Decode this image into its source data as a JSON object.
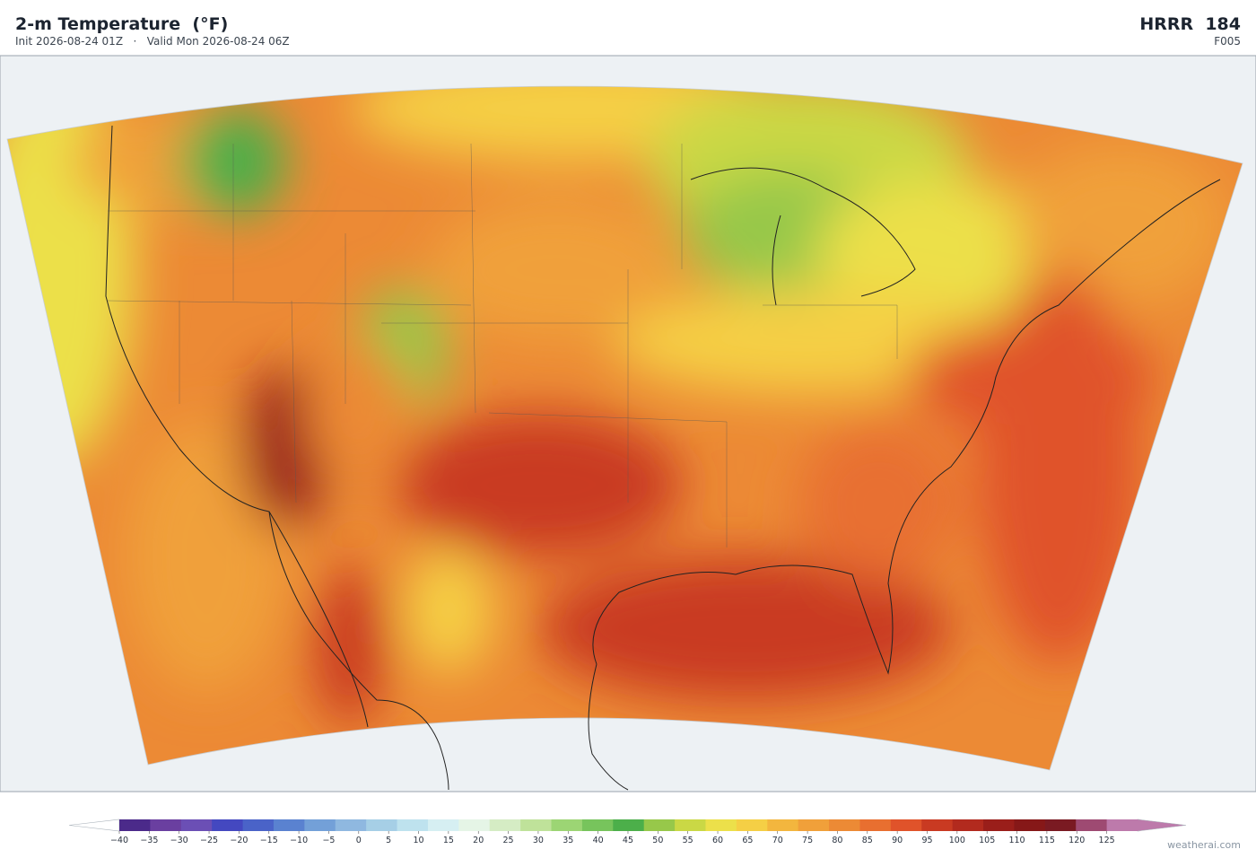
{
  "header": {
    "title": "2-m Temperature  (°F)",
    "subtitle": "Init 2026-08-24 01Z   ·   Valid Mon 2026-08-24 06Z",
    "model": "HRRR  184",
    "forecast_hour": "F005"
  },
  "colorbar": {
    "ticks": [
      {
        "value": -40,
        "label": "−40"
      },
      {
        "value": -35,
        "label": "−35"
      },
      {
        "value": -30,
        "label": "−30"
      },
      {
        "value": -25,
        "label": "−25"
      },
      {
        "value": -20,
        "label": "−20"
      },
      {
        "value": -15,
        "label": "−15"
      },
      {
        "value": -10,
        "label": "−10"
      },
      {
        "value": -5,
        "label": "−5"
      },
      0,
      5,
      10,
      15,
      20,
      25,
      30,
      35,
      40,
      45,
      50,
      55,
      60,
      65,
      70,
      75,
      80,
      85,
      90,
      95,
      100,
      105,
      110,
      115,
      120,
      125
    ],
    "colors": [
      "#4b2a8a",
      "#6a3fa0",
      "#6b4fb5",
      "#4448c0",
      "#4a63c8",
      "#5a82d0",
      "#73a0d8",
      "#8fb8e0",
      "#a6cfe6",
      "#bee2ee",
      "#d6eff2",
      "#e5f5e6",
      "#d5ecc4",
      "#bfe29a",
      "#9cd574",
      "#77c45c",
      "#4caf4a",
      "#97c84a",
      "#cad845",
      "#ece04a",
      "#f5cf45",
      "#f3b63e",
      "#f0a03a",
      "#ec8a35",
      "#e86f30",
      "#e0532a",
      "#c93a22",
      "#b22a1e",
      "#9a1e1a",
      "#861818",
      "#7a1a22",
      "#9e4a72",
      "#bd7aab"
    ]
  },
  "watermark": "weatherai.com"
}
